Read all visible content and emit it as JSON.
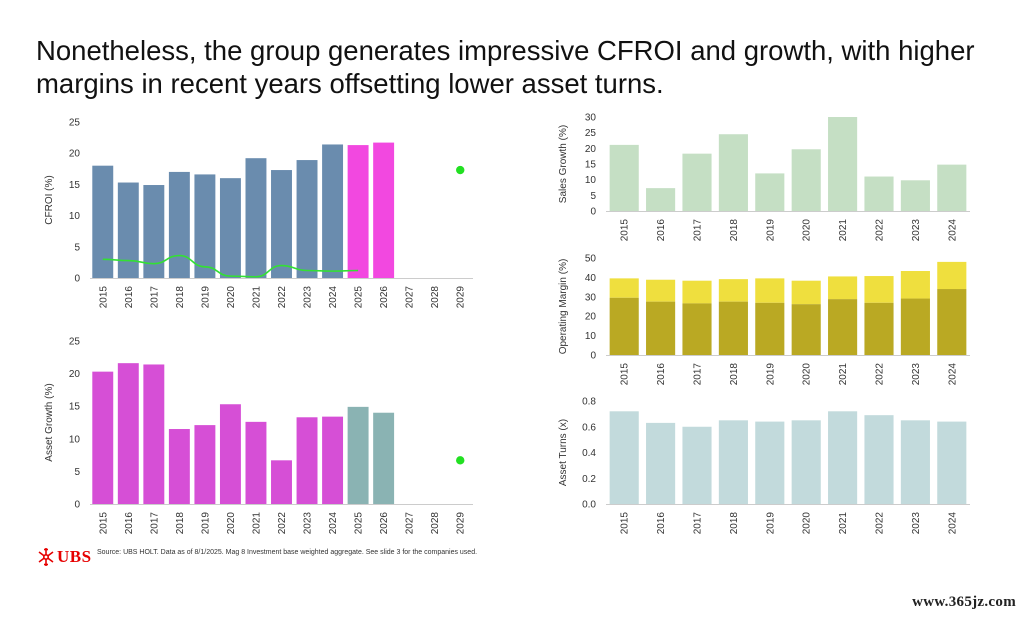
{
  "title": "Nonetheless, the group generates impressive CFROI and growth, with higher margins in recent years offsetting lower asset turns.",
  "footer": {
    "logo_text": "UBS",
    "source": "Source: UBS HOLT. Data as of 8/1/2025. Mag 8 Investment base weighted aggregate. See slide 3 for the companies used."
  },
  "watermark": "www.365jz.com",
  "colors": {
    "cfroi_hist": "#6a8cae",
    "cfroi_fcst": "#f248e0",
    "cfroi_line": "#33e033",
    "cfroi_dot": "#22e022",
    "asset_hist": "#d64fd6",
    "asset_fcst": "#8ab3b3",
    "sales": "#c5dfc4",
    "opm_upper": "#efdf3e",
    "opm_lower": "#baa923",
    "turns": "#c2dadc",
    "axis_text": "#333333"
  },
  "chart_data": [
    {
      "id": "cfroi",
      "type": "bar",
      "ylabel": "CFROI (%)",
      "ylim": [
        0,
        25
      ],
      "yticks": [
        0,
        5,
        10,
        15,
        20,
        25
      ],
      "categories": [
        "2015",
        "2016",
        "2017",
        "2018",
        "2019",
        "2020",
        "2021",
        "2022",
        "2023",
        "2024",
        "2025",
        "2026",
        "2027",
        "2028",
        "2029"
      ],
      "series": [
        {
          "values": [
            18.0,
            15.3,
            14.9,
            17.0,
            16.6,
            16.0,
            19.2,
            17.3,
            18.9,
            21.4,
            21.3,
            21.7,
            null,
            null,
            null
          ]
        },
        {
          "values": [
            3.0,
            2.8,
            2.3,
            3.6,
            1.8,
            0.3,
            0.2,
            2.0,
            1.2,
            1.1,
            1.2,
            null,
            null,
            null,
            null
          ]
        },
        {
          "values": [
            null,
            null,
            null,
            null,
            null,
            null,
            null,
            null,
            null,
            null,
            null,
            null,
            null,
            null,
            17.3
          ]
        }
      ],
      "forecast_from": "2025"
    },
    {
      "id": "asset_growth",
      "type": "bar",
      "ylabel": "Asset Growth (%)",
      "ylim": [
        0,
        25
      ],
      "yticks": [
        0,
        5,
        10,
        15,
        20,
        25
      ],
      "categories": [
        "2015",
        "2016",
        "2017",
        "2018",
        "2019",
        "2020",
        "2021",
        "2022",
        "2023",
        "2024",
        "2025",
        "2026",
        "2027",
        "2028",
        "2029"
      ],
      "series": [
        {
          "values": [
            20.3,
            21.6,
            21.4,
            11.5,
            12.1,
            15.3,
            12.6,
            6.7,
            13.3,
            13.4,
            14.9,
            14.0,
            null,
            null,
            null
          ]
        },
        {
          "values": [
            null,
            null,
            null,
            null,
            null,
            null,
            null,
            null,
            null,
            null,
            null,
            null,
            null,
            null,
            6.7
          ]
        }
      ],
      "forecast_from": "2025"
    },
    {
      "id": "sales_growth",
      "type": "bar",
      "ylabel": "Sales Growth (%)",
      "ylim": [
        0,
        30
      ],
      "yticks": [
        0,
        5,
        10,
        15,
        20,
        25,
        30
      ],
      "categories": [
        "2015",
        "2016",
        "2017",
        "2018",
        "2019",
        "2020",
        "2021",
        "2022",
        "2023",
        "2024"
      ],
      "series": [
        {
          "values": [
            21.1,
            7.3,
            18.3,
            24.5,
            12.0,
            19.7,
            30.0,
            11.0,
            9.8,
            14.8
          ]
        }
      ]
    },
    {
      "id": "operating_margin",
      "type": "bar",
      "ylabel": "Operating Margin (%)",
      "ylim": [
        0,
        50
      ],
      "yticks": [
        0,
        10,
        20,
        30,
        40,
        50
      ],
      "categories": [
        "2015",
        "2016",
        "2017",
        "2018",
        "2019",
        "2020",
        "2021",
        "2022",
        "2023",
        "2024"
      ],
      "series": [
        {
          "values": [
            39.5,
            38.8,
            38.3,
            39.1,
            39.5,
            38.3,
            40.5,
            40.7,
            43.3,
            48.0
          ]
        },
        {
          "values": [
            29.5,
            27.5,
            26.6,
            27.5,
            26.9,
            26.2,
            28.8,
            26.9,
            29.1,
            34.0
          ]
        }
      ]
    },
    {
      "id": "asset_turns",
      "type": "bar",
      "ylabel": "Asset Turns (x)",
      "ylim": [
        0,
        0.8
      ],
      "yticks": [
        0,
        0.2,
        0.4,
        0.6,
        0.8
      ],
      "categories": [
        "2015",
        "2016",
        "2017",
        "2018",
        "2019",
        "2020",
        "2021",
        "2022",
        "2023",
        "2024"
      ],
      "series": [
        {
          "values": [
            0.72,
            0.63,
            0.6,
            0.65,
            0.64,
            0.65,
            0.72,
            0.69,
            0.65,
            0.64
          ]
        }
      ]
    }
  ]
}
